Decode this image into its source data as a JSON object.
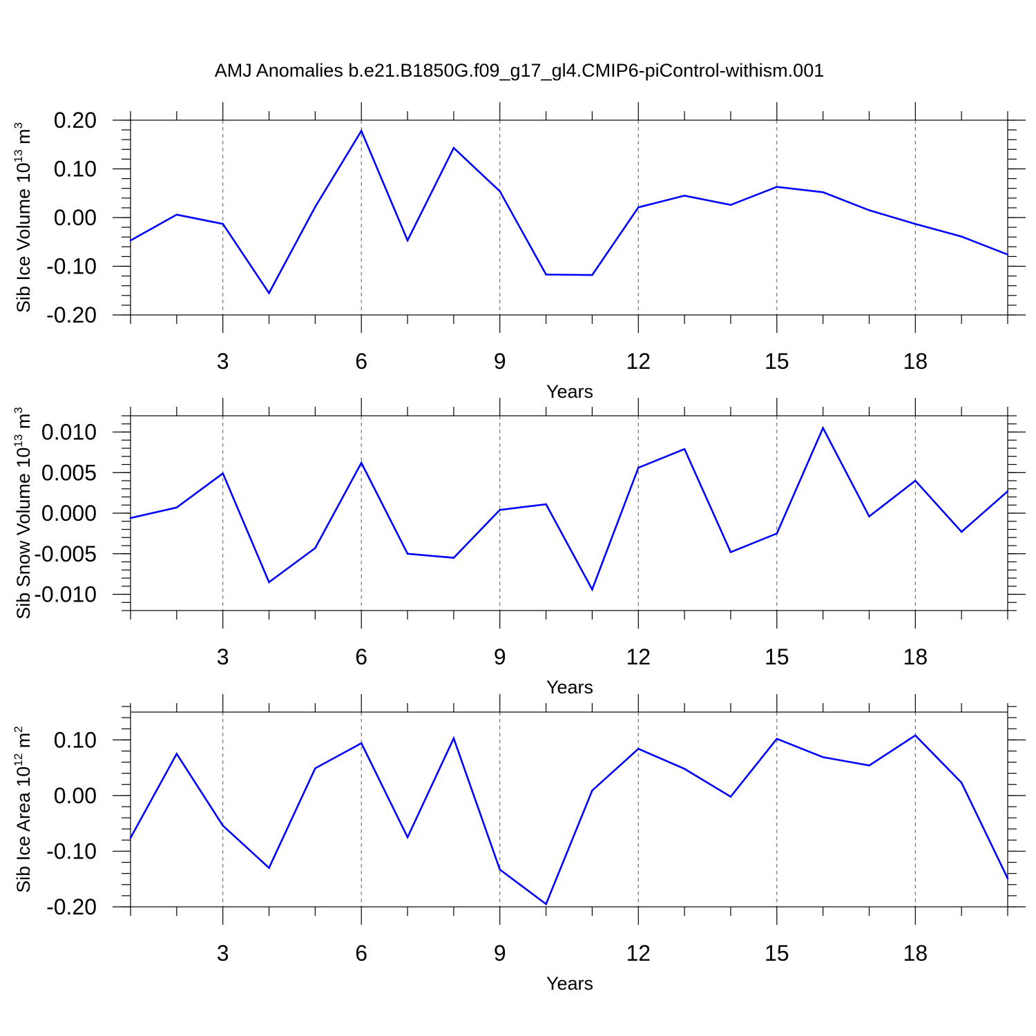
{
  "title": "AMJ Anomalies b.e21.B1850G.f09_g17_gl4.CMIP6-piControl-withism.001",
  "colors": {
    "line": "#0000ff",
    "axis": "#000000",
    "grid": "#555555"
  },
  "chart_data": [
    {
      "type": "line",
      "ylabel": {
        "base": "Sib Ice Volume 10",
        "exp": "13",
        "unit": " m",
        "unit_exp": "3"
      },
      "xlabel": "Years",
      "xlim": [
        1,
        20
      ],
      "ylim": [
        -0.2,
        0.2
      ],
      "xticks": [
        3,
        6,
        9,
        12,
        15,
        18
      ],
      "xtick_labels": [
        "3",
        "6",
        "9",
        "12",
        "15",
        "18"
      ],
      "yticks": [
        -0.2,
        -0.1,
        0.0,
        0.1,
        0.2
      ],
      "ytick_labels": [
        "-0.20",
        "-0.10",
        "0.00",
        "0.10",
        "0.20"
      ],
      "y_minor_step": 0.02,
      "grid": "vertical dashed at major x ticks",
      "x": [
        1,
        2,
        3,
        4,
        5,
        6,
        7,
        8,
        9,
        10,
        11,
        12,
        13,
        14,
        15,
        16,
        17,
        18,
        19,
        20
      ],
      "y": [
        -0.047,
        0.006,
        -0.013,
        -0.155,
        0.022,
        0.178,
        -0.047,
        0.143,
        0.054,
        -0.117,
        -0.118,
        0.021,
        0.045,
        0.026,
        0.063,
        0.052,
        0.015,
        -0.013,
        -0.039,
        -0.076
      ]
    },
    {
      "type": "line",
      "ylabel": {
        "base": "Sib Snow Volume 10",
        "exp": "13",
        "unit": " m",
        "unit_exp": "3"
      },
      "xlabel": "Years",
      "xlim": [
        1,
        20
      ],
      "ylim": [
        -0.012,
        0.012
      ],
      "xticks": [
        3,
        6,
        9,
        12,
        15,
        18
      ],
      "xtick_labels": [
        "3",
        "6",
        "9",
        "12",
        "15",
        "18"
      ],
      "yticks": [
        -0.01,
        -0.005,
        0.0,
        0.005,
        0.01
      ],
      "ytick_labels": [
        "-0.010",
        "-0.005",
        "0.000",
        "0.005",
        "0.010"
      ],
      "y_minor_step": 0.001,
      "grid": "vertical dashed at major x ticks",
      "x": [
        1,
        2,
        3,
        4,
        5,
        6,
        7,
        8,
        9,
        10,
        11,
        12,
        13,
        14,
        15,
        16,
        17,
        18,
        19,
        20
      ],
      "y": [
        -0.0006,
        0.0007,
        0.0049,
        -0.0085,
        -0.0043,
        0.0062,
        -0.005,
        -0.0055,
        0.0004,
        0.0011,
        -0.0094,
        0.0056,
        0.0079,
        -0.0048,
        -0.0025,
        0.0105,
        -0.0004,
        0.004,
        -0.0023,
        0.0027
      ]
    },
    {
      "type": "line",
      "ylabel": {
        "base": "Sib Ice Area 10",
        "exp": "12",
        "unit": " m",
        "unit_exp": "2"
      },
      "xlabel": "Years",
      "xlim": [
        1,
        20
      ],
      "ylim": [
        -0.2,
        0.15
      ],
      "xticks": [
        3,
        6,
        9,
        12,
        15,
        18
      ],
      "xtick_labels": [
        "3",
        "6",
        "9",
        "12",
        "15",
        "18"
      ],
      "yticks": [
        -0.2,
        -0.1,
        0.0,
        0.1
      ],
      "ytick_labels": [
        "-0.20",
        "-0.10",
        "0.00",
        "0.10"
      ],
      "y_minor_step": 0.02,
      "grid": "vertical dashed at major x ticks",
      "x": [
        1,
        2,
        3,
        4,
        5,
        6,
        7,
        8,
        9,
        10,
        11,
        12,
        13,
        14,
        15,
        16,
        17,
        18,
        19,
        20
      ],
      "y": [
        -0.076,
        0.075,
        -0.054,
        -0.13,
        0.049,
        0.094,
        -0.075,
        0.103,
        -0.133,
        -0.195,
        0.009,
        0.084,
        0.048,
        -0.002,
        0.102,
        0.069,
        0.054,
        0.108,
        0.023,
        -0.149
      ]
    }
  ]
}
